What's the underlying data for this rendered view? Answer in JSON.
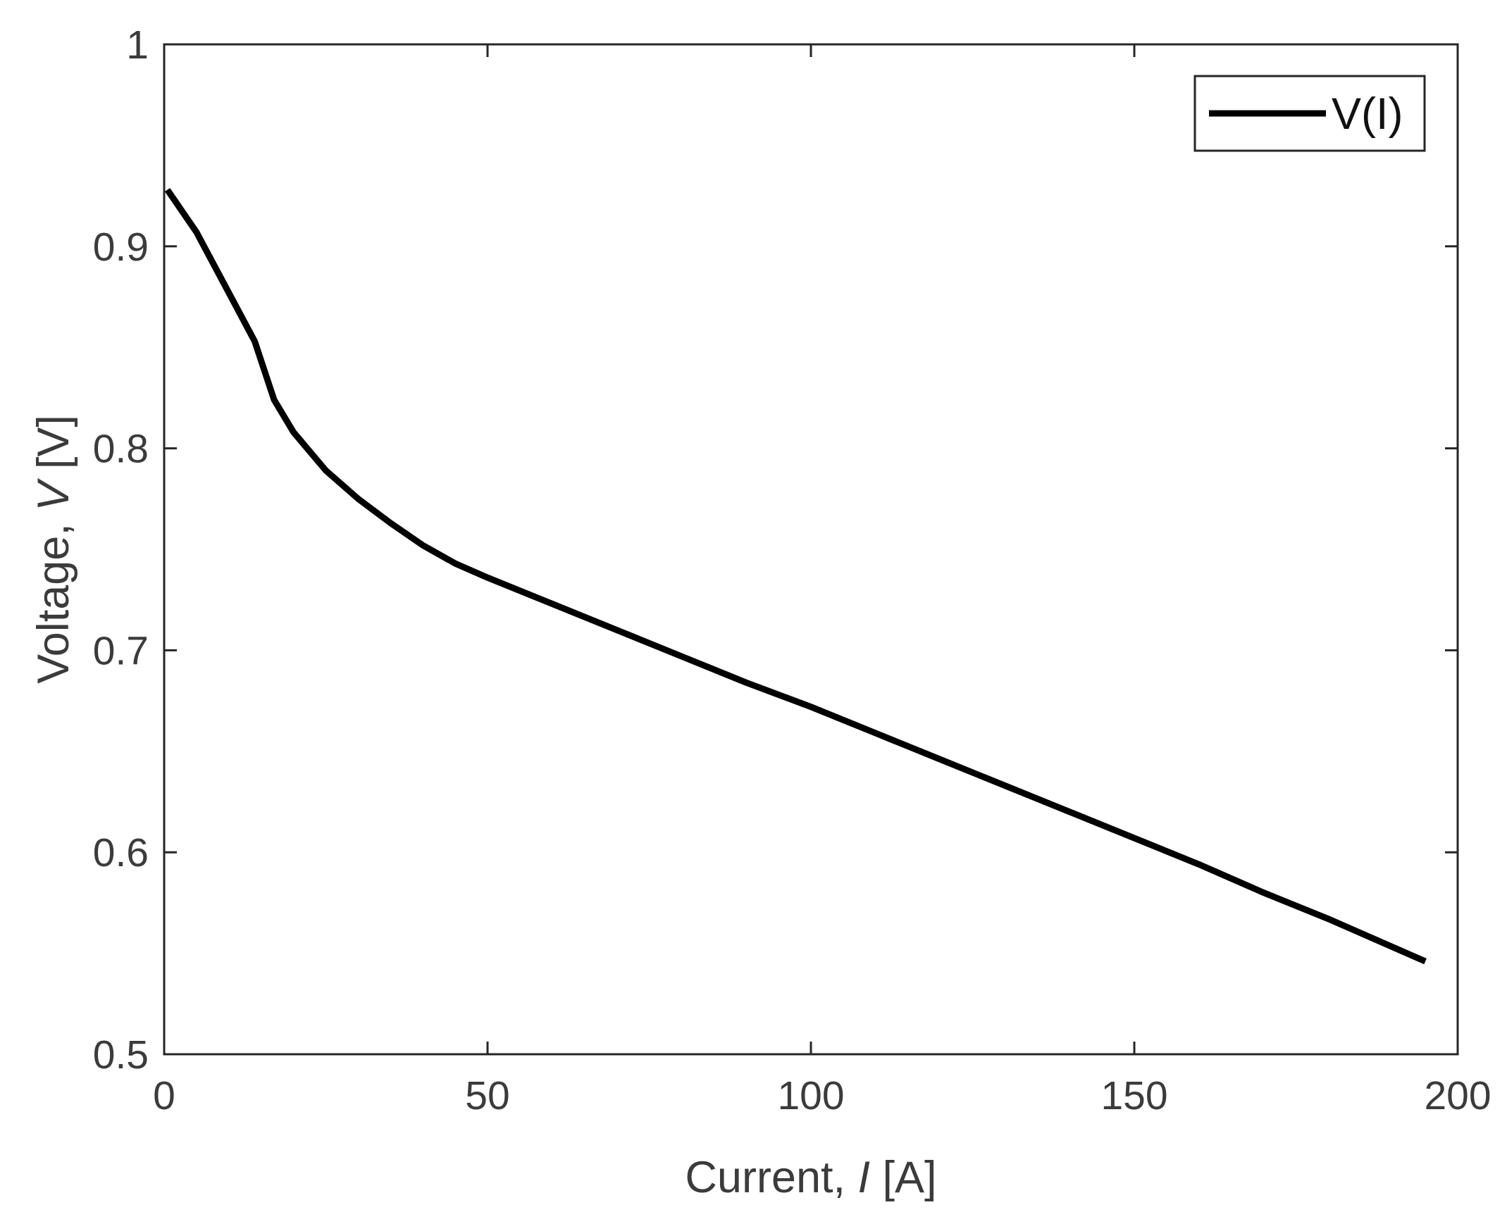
{
  "chart_data": {
    "type": "line",
    "xlabel_prefix": "Current, ",
    "xlabel_symbol": "I",
    "xlabel_unit": " [A]",
    "ylabel_prefix": "Voltage, ",
    "ylabel_symbol": "V",
    "ylabel_unit": " [V]",
    "xlim": [
      0,
      200
    ],
    "ylim": [
      0.5,
      1
    ],
    "xticks": [
      0,
      50,
      100,
      150,
      200
    ],
    "xtick_labels": [
      "0",
      "50",
      "100",
      "150",
      "200"
    ],
    "yticks": [
      0.5,
      0.6,
      0.7,
      0.8,
      0.9,
      1
    ],
    "ytick_labels": [
      "0.5",
      "0.6",
      "0.7",
      "0.8",
      "0.9",
      "1"
    ],
    "grid": false,
    "legend_position": "top-right",
    "series": [
      {
        "name": "V(I)",
        "color": "#000000",
        "x": [
          0.5,
          5,
          10,
          14,
          17,
          20,
          25,
          30,
          35,
          40,
          45,
          50,
          60,
          70,
          80,
          90,
          100,
          110,
          120,
          130,
          140,
          150,
          160,
          170,
          180,
          190,
          195
        ],
        "y": [
          0.928,
          0.907,
          0.877,
          0.853,
          0.824,
          0.808,
          0.789,
          0.775,
          0.763,
          0.752,
          0.743,
          0.736,
          0.723,
          0.71,
          0.697,
          0.684,
          0.672,
          0.659,
          0.646,
          0.633,
          0.62,
          0.607,
          0.594,
          0.58,
          0.567,
          0.553,
          0.546
        ]
      }
    ]
  }
}
